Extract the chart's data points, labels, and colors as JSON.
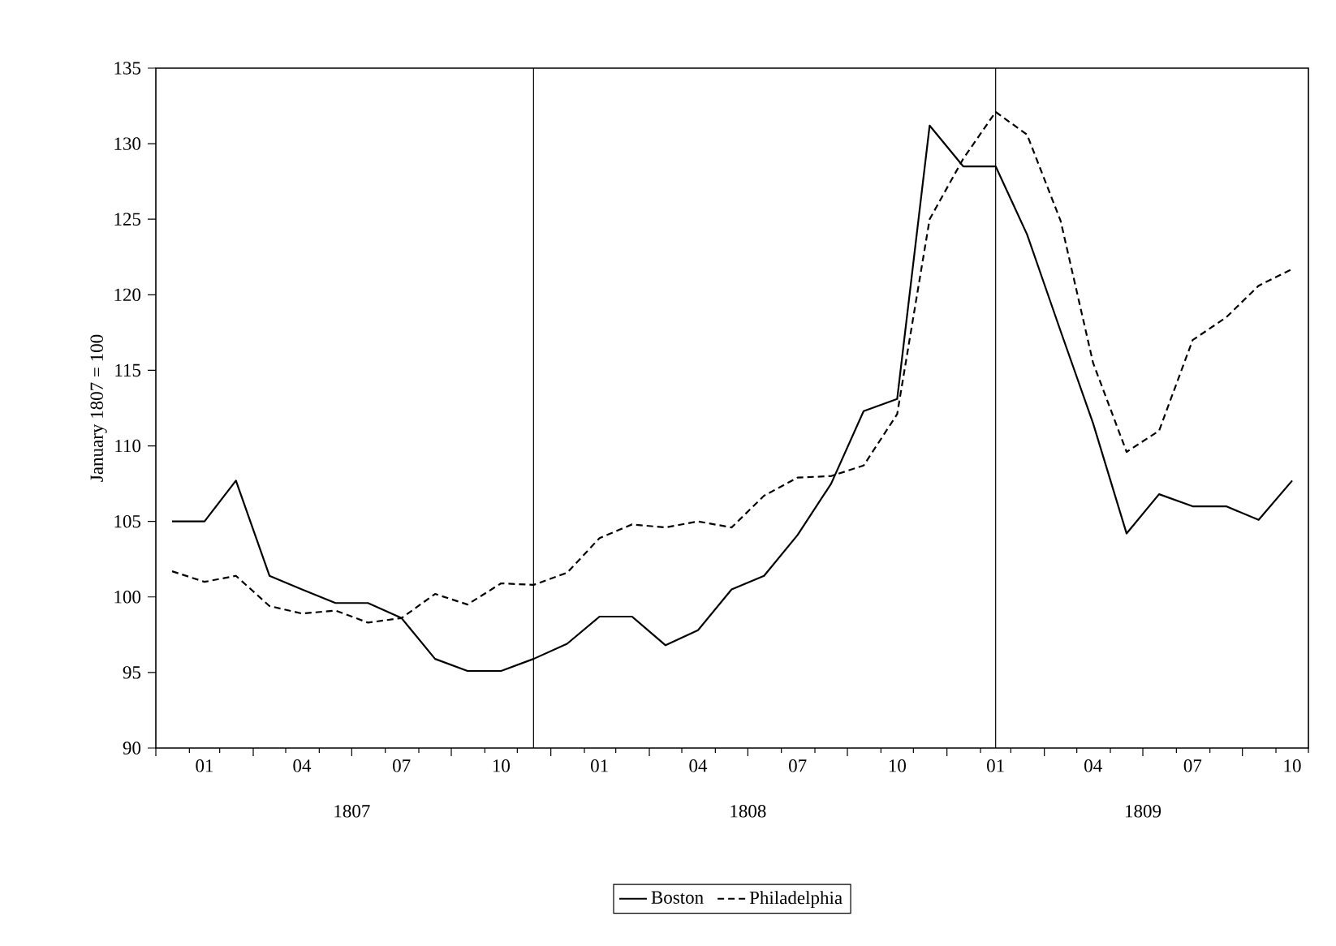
{
  "chart_data": {
    "type": "line",
    "ylabel": "January 1807 = 100",
    "x": [
      "1807-01-16",
      "1807-02-15",
      "1807-03-16",
      "1807-04-16",
      "1807-05-16",
      "1807-06-16",
      "1807-07-16",
      "1807-08-16",
      "1807-09-16",
      "1807-10-16",
      "1807-11-16",
      "1807-12-16",
      "1808-01-16",
      "1808-02-15",
      "1808-03-16",
      "1808-04-16",
      "1808-05-16",
      "1808-06-16",
      "1808-07-16",
      "1808-08-16",
      "1808-09-16",
      "1808-10-16",
      "1808-11-16",
      "1808-12-16",
      "1809-01-16",
      "1809-02-15",
      "1809-03-16",
      "1809-04-16",
      "1809-05-16",
      "1809-06-16",
      "1809-07-16",
      "1809-08-16",
      "1809-09-16",
      "1809-10-16",
      "1809-11-16"
    ],
    "series": [
      {
        "name": "Boston",
        "color": "#000000",
        "line_style": "solid",
        "values": [
          105.0,
          105.0,
          107.7,
          101.4,
          100.5,
          99.6,
          99.6,
          98.6,
          95.9,
          95.1,
          95.1,
          95.9,
          96.9,
          98.7,
          98.7,
          96.8,
          97.8,
          100.5,
          101.4,
          104.1,
          107.5,
          112.3,
          113.1,
          131.2,
          128.5,
          128.5,
          124.0,
          117.6,
          111.5,
          104.2,
          106.8,
          106.0,
          106.0,
          105.1,
          107.7
        ]
      },
      {
        "name": "Philadelphia",
        "color": "#000000",
        "line_style": "dashed",
        "values": [
          101.7,
          101.0,
          101.4,
          99.4,
          98.9,
          99.1,
          98.3,
          98.6,
          100.2,
          99.5,
          100.9,
          100.8,
          101.6,
          103.9,
          104.8,
          104.6,
          105.0,
          104.6,
          106.7,
          107.9,
          108.0,
          108.7,
          112.1,
          125.0,
          129.0,
          132.1,
          130.6,
          124.9,
          115.5,
          109.6,
          111.0,
          117.0,
          118.5,
          120.6,
          121.7
        ]
      }
    ],
    "xlim": [
      "1807-01-01",
      "1809-12-01"
    ],
    "xticks": [
      {
        "value": "1807-02-15",
        "label": "01"
      },
      {
        "value": "1807-05-16",
        "label": "04"
      },
      {
        "value": "1807-08-16",
        "label": "07"
      },
      {
        "value": "1807-11-16",
        "label": "10"
      },
      {
        "value": "1808-02-15",
        "label": "01"
      },
      {
        "value": "1808-05-16",
        "label": "04"
      },
      {
        "value": "1808-08-16",
        "label": "07"
      },
      {
        "value": "1808-11-16",
        "label": "10"
      },
      {
        "value": "1809-02-15",
        "label": "01"
      },
      {
        "value": "1809-05-16",
        "label": "04"
      },
      {
        "value": "1809-08-16",
        "label": "07"
      },
      {
        "value": "1809-11-16",
        "label": "10"
      },
      {
        "value": "1807-01-01",
        "label": null
      },
      {
        "value": "1807-02-01",
        "label": null
      },
      {
        "value": "1807-03-01",
        "label": null
      },
      {
        "value": "1807-04-01",
        "label": null
      },
      {
        "value": "1807-05-01",
        "label": null
      },
      {
        "value": "1807-06-01",
        "label": null
      },
      {
        "value": "1807-07-01",
        "label": null
      },
      {
        "value": "1807-08-01",
        "label": null
      },
      {
        "value": "1807-09-01",
        "label": null
      },
      {
        "value": "1807-10-01",
        "label": null
      },
      {
        "value": "1807-11-01",
        "label": null
      },
      {
        "value": "1807-12-01",
        "label": null
      },
      {
        "value": "1808-01-01",
        "label": null
      },
      {
        "value": "1808-02-01",
        "label": null
      },
      {
        "value": "1808-03-01",
        "label": null
      },
      {
        "value": "1808-04-01",
        "label": null
      },
      {
        "value": "1808-05-01",
        "label": null
      },
      {
        "value": "1808-06-01",
        "label": null
      },
      {
        "value": "1808-07-01",
        "label": null
      },
      {
        "value": "1808-08-01",
        "label": null
      },
      {
        "value": "1808-09-01",
        "label": null
      },
      {
        "value": "1808-10-01",
        "label": null
      },
      {
        "value": "1808-11-01",
        "label": null
      },
      {
        "value": "1808-12-01",
        "label": null
      },
      {
        "value": "1809-01-01",
        "label": null
      },
      {
        "value": "1809-02-01",
        "label": null
      },
      {
        "value": "1809-03-01",
        "label": null
      },
      {
        "value": "1809-04-01",
        "label": null
      },
      {
        "value": "1809-05-01",
        "label": null
      },
      {
        "value": "1809-06-01",
        "label": null
      },
      {
        "value": "1809-07-01",
        "label": null
      },
      {
        "value": "1809-08-01",
        "label": null
      },
      {
        "value": "1809-09-01",
        "label": null
      },
      {
        "value": "1809-10-01",
        "label": null
      },
      {
        "value": "1809-11-01",
        "label": null
      },
      {
        "value": "1809-12-01",
        "label": null
      }
    ],
    "ylim": [
      90,
      135
    ],
    "yticks": [
      90,
      95,
      100,
      105,
      110,
      115,
      120,
      125,
      130,
      135
    ],
    "ref_lines": [
      {
        "axis": "x",
        "value": "1807-12-16",
        "color": "#000000"
      },
      {
        "axis": "x",
        "value": "1809-02-15",
        "color": "#000000"
      }
    ],
    "annotations": [
      "1807",
      "1808",
      "1809"
    ],
    "grid": false,
    "legend": "bottom"
  }
}
